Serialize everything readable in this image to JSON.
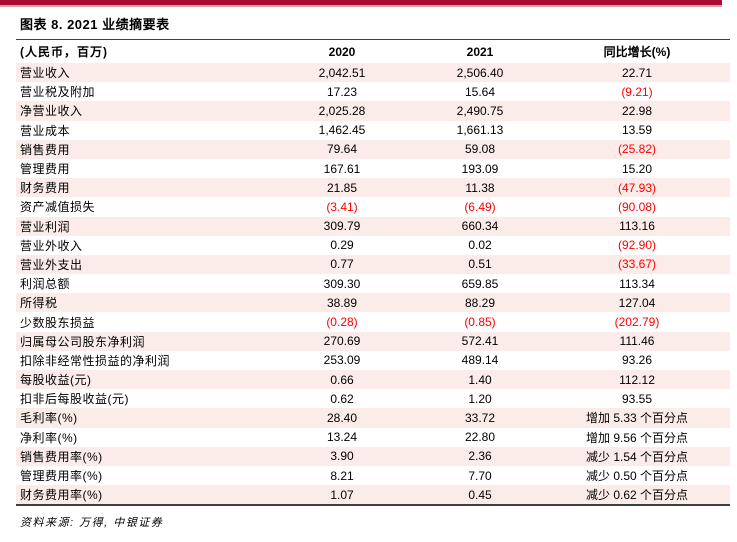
{
  "page": {
    "title": "图表 8. 2021 业绩摘要表",
    "source_note": "资料来源: 万得, 中银证券"
  },
  "colors": {
    "accent_bar": "#a70d32",
    "accent_bar_underline": "#dc9fae",
    "row_stripe": "#fbece9",
    "negative_value": "#fe0000",
    "table_border": "#3f3f3f"
  },
  "table": {
    "columns": [
      "(人民币，百万)",
      "2020",
      "2021",
      "同比增长(%)"
    ],
    "rows": [
      {
        "label": "营业收入",
        "y2020": "2,042.51",
        "y2021": "2,506.40",
        "yoy": "22.71"
      },
      {
        "label": "营业税及附加",
        "y2020": "17.23",
        "y2021": "15.64",
        "yoy": "(9.21)"
      },
      {
        "label": "净营业收入",
        "y2020": "2,025.28",
        "y2021": "2,490.75",
        "yoy": "22.98"
      },
      {
        "label": "营业成本",
        "y2020": "1,462.45",
        "y2021": "1,661.13",
        "yoy": "13.59"
      },
      {
        "label": "销售费用",
        "y2020": "79.64",
        "y2021": "59.08",
        "yoy": "(25.82)"
      },
      {
        "label": "管理费用",
        "y2020": "167.61",
        "y2021": "193.09",
        "yoy": "15.20"
      },
      {
        "label": "财务费用",
        "y2020": "21.85",
        "y2021": "11.38",
        "yoy": "(47.93)"
      },
      {
        "label": "资产减值损失",
        "y2020": "(3.41)",
        "y2021": "(6.49)",
        "yoy": "(90.08)"
      },
      {
        "label": "营业利润",
        "y2020": "309.79",
        "y2021": "660.34",
        "yoy": "113.16"
      },
      {
        "label": "营业外收入",
        "y2020": "0.29",
        "y2021": "0.02",
        "yoy": "(92.90)"
      },
      {
        "label": "营业外支出",
        "y2020": "0.77",
        "y2021": "0.51",
        "yoy": "(33.67)"
      },
      {
        "label": "利润总额",
        "y2020": "309.30",
        "y2021": "659.85",
        "yoy": "113.34"
      },
      {
        "label": "所得税",
        "y2020": "38.89",
        "y2021": "88.29",
        "yoy": "127.04"
      },
      {
        "label": "少数股东损益",
        "y2020": "(0.28)",
        "y2021": "(0.85)",
        "yoy": "(202.79)"
      },
      {
        "label": "归属母公司股东净利润",
        "y2020": "270.69",
        "y2021": "572.41",
        "yoy": "111.46"
      },
      {
        "label": "扣除非经常性损益的净利润",
        "y2020": "253.09",
        "y2021": "489.14",
        "yoy": "93.26"
      },
      {
        "label": "每股收益(元)",
        "y2020": "0.66",
        "y2021": "1.40",
        "yoy": "112.12"
      },
      {
        "label": "扣非后每股收益(元)",
        "y2020": "0.62",
        "y2021": "1.20",
        "yoy": "93.55"
      },
      {
        "label": "毛利率(%)",
        "y2020": "28.40",
        "y2021": "33.72",
        "yoy": "增加 5.33 个百分点"
      },
      {
        "label": "净利率(%)",
        "y2020": "13.24",
        "y2021": "22.80",
        "yoy": "增加 9.56 个百分点"
      },
      {
        "label": "销售费用率(%)",
        "y2020": "3.90",
        "y2021": "2.36",
        "yoy": "减少 1.54 个百分点"
      },
      {
        "label": "管理费用率(%)",
        "y2020": "8.21",
        "y2021": "7.70",
        "yoy": "减少 0.50 个百分点"
      },
      {
        "label": "财务费用率(%)",
        "y2020": "1.07",
        "y2021": "0.45",
        "yoy": "减少 0.62 个百分点"
      }
    ]
  }
}
